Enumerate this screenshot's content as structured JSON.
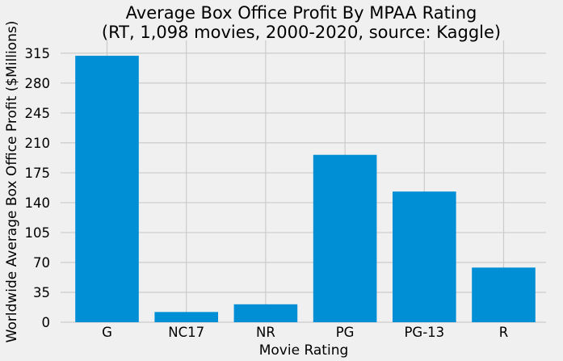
{
  "chart_data": {
    "type": "bar",
    "title_lines": [
      "Average Box Office Profit By MPAA Rating",
      "(RT, 1,098 movies, 2000-2020, source: Kaggle)"
    ],
    "xlabel": "Movie Rating",
    "ylabel": "Worldwide Average Box Office Profit ($Millions)",
    "categories": [
      "G",
      "NC17",
      "NR",
      "PG",
      "PG-13",
      "R"
    ],
    "values": [
      312,
      12,
      21,
      196,
      153,
      64
    ],
    "ylim": [
      0,
      330
    ],
    "yticks": [
      0,
      35,
      70,
      105,
      140,
      175,
      210,
      245,
      280,
      315
    ],
    "grid": true,
    "bar_color": "#008fd5",
    "background_color": "#f0f0f0",
    "grid_color": "#cbcbcb"
  }
}
